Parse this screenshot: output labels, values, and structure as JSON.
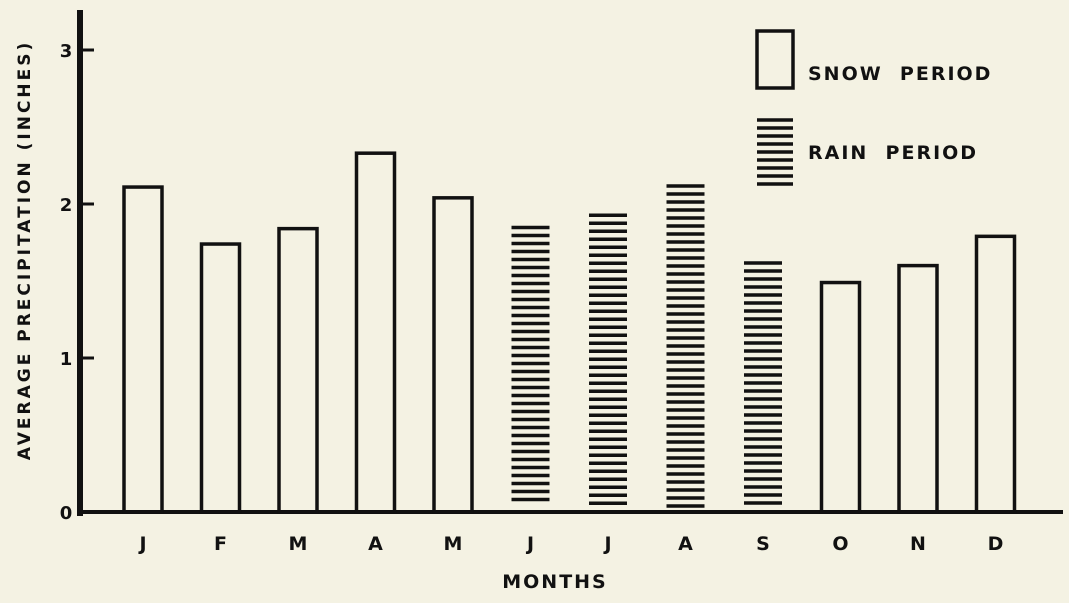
{
  "chart_data": {
    "type": "bar",
    "title": "",
    "xlabel": "MONTHS",
    "ylabel": "AVERAGE PRECIPITATION (INCHES)",
    "ylim": [
      0,
      3
    ],
    "yticks": [
      "0",
      "1",
      "2",
      "3"
    ],
    "grid": false,
    "legend_position": "top-right",
    "categories": [
      "J",
      "F",
      "M",
      "A",
      "M",
      "J",
      "J",
      "A",
      "S",
      "O",
      "N",
      "D"
    ],
    "values": [
      2.11,
      1.74,
      1.84,
      2.33,
      2.04,
      1.86,
      1.94,
      2.13,
      1.63,
      1.49,
      1.6,
      1.79
    ],
    "periods": [
      "snow",
      "snow",
      "snow",
      "snow",
      "snow",
      "rain",
      "rain",
      "rain",
      "rain",
      "snow",
      "snow",
      "snow"
    ],
    "legend": [
      {
        "key": "snow",
        "label": "SNOW  PERIOD",
        "style": "outline"
      },
      {
        "key": "rain",
        "label": "RAIN  PERIOD",
        "style": "horizontal-hatch"
      }
    ],
    "colors": {
      "background": "#f4f2e3",
      "ink": "#111111"
    }
  }
}
